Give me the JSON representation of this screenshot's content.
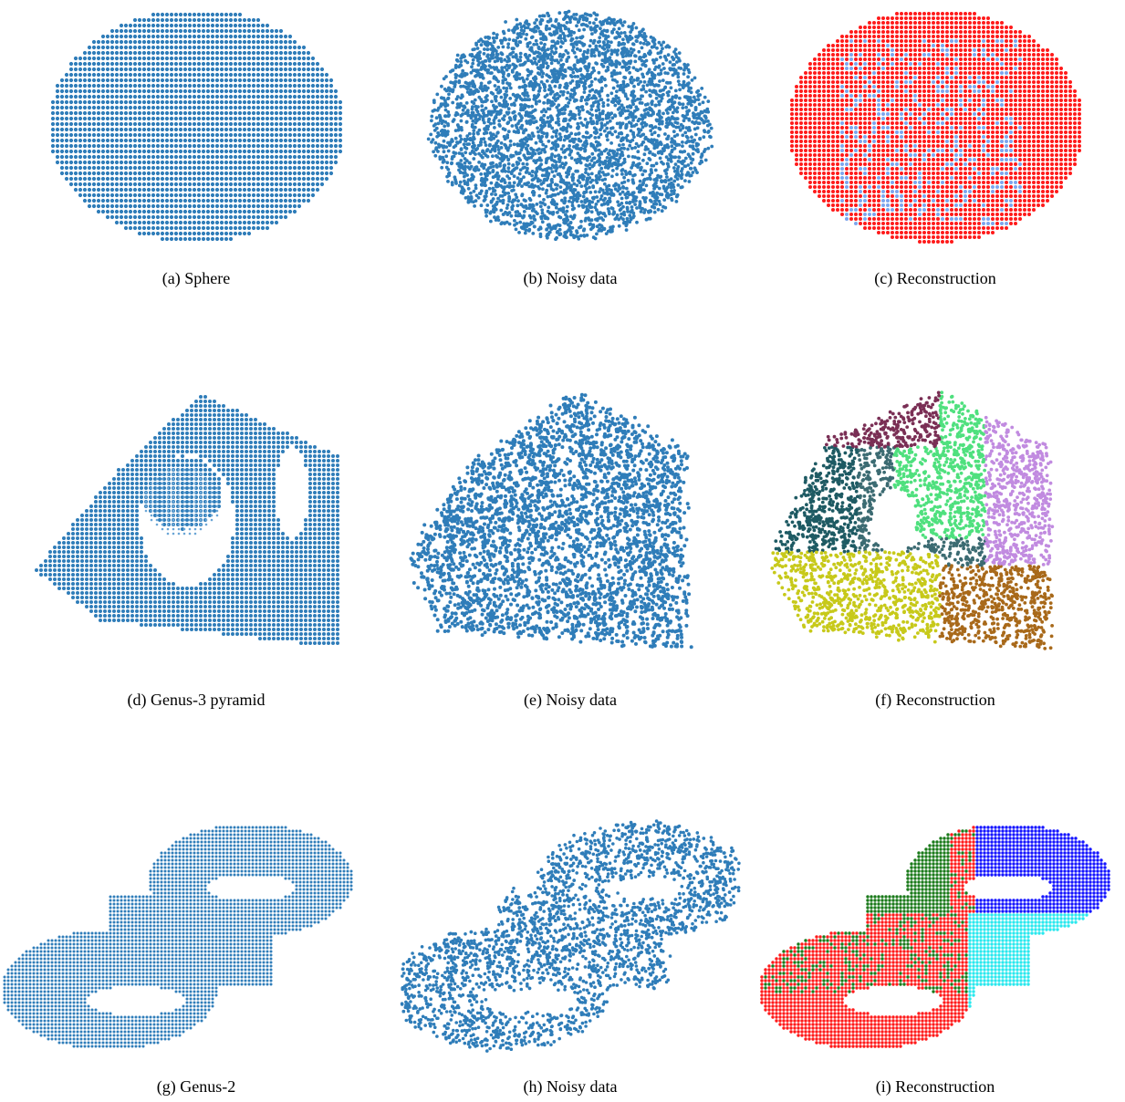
{
  "figure": {
    "panels": [
      {
        "id": "a",
        "caption": "(a)  Sphere",
        "shape": "sphere",
        "variant": "clean",
        "colors": [
          "#2f7db9"
        ]
      },
      {
        "id": "b",
        "caption": "(b)  Noisy data",
        "shape": "sphere",
        "variant": "noisy",
        "colors": [
          "#2f7db9"
        ]
      },
      {
        "id": "c",
        "caption": "(c)  Reconstruction",
        "shape": "sphere",
        "variant": "recon",
        "colors": [
          "#ff1a1a",
          "#1414ff",
          "#5b8fe8"
        ]
      },
      {
        "id": "d",
        "caption": "(d)  Genus-3 pyramid",
        "shape": "pyramid",
        "variant": "clean",
        "colors": [
          "#2f7db9"
        ]
      },
      {
        "id": "e",
        "caption": "(e)  Noisy data",
        "shape": "pyramid",
        "variant": "noisy",
        "colors": [
          "#2f7db9"
        ]
      },
      {
        "id": "f",
        "caption": "(f)  Reconstruction",
        "shape": "pyramid",
        "variant": "recon",
        "colors": [
          "#1e5a63",
          "#c7c91a",
          "#4fe07e",
          "#c18be0",
          "#a8691a",
          "#7a2f55",
          "#3c6b72"
        ]
      },
      {
        "id": "g",
        "caption": "(g)  Genus-2",
        "shape": "genus2",
        "variant": "clean",
        "colors": [
          "#2f7db9"
        ]
      },
      {
        "id": "h",
        "caption": "(h)  Noisy data",
        "shape": "genus2",
        "variant": "noisy",
        "colors": [
          "#2f7db9"
        ]
      },
      {
        "id": "i",
        "caption": "(i)  Reconstruction",
        "shape": "genus2",
        "variant": "recon",
        "colors": [
          "#ff1a1a",
          "#1414ff",
          "#1a7a1a",
          "#29e8ee"
        ]
      }
    ]
  }
}
